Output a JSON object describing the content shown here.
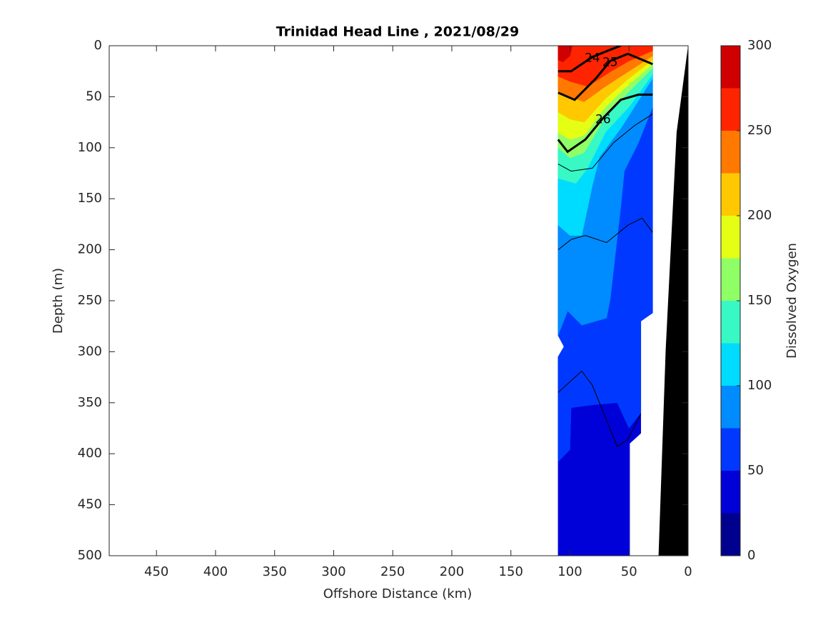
{
  "chart_data": {
    "type": "contourf",
    "title": "Trinidad Head Line , 2021/08/29",
    "xlabel": "Offshore Distance (km)",
    "ylabel": "Depth (m)",
    "colorbar_label": "Dissolved Oxygen",
    "xlim": [
      490,
      0
    ],
    "ylim": [
      0,
      500
    ],
    "xticks": [
      450,
      400,
      350,
      300,
      250,
      200,
      150,
      100,
      50,
      0
    ],
    "yticks": [
      0,
      50,
      100,
      150,
      200,
      250,
      300,
      350,
      400,
      450,
      500
    ],
    "levels": [
      0,
      25,
      50,
      75,
      100,
      125,
      150,
      175,
      200,
      225,
      250,
      275,
      300
    ],
    "colors": [
      "#00008f",
      "#0000d8",
      "#0038ff",
      "#008cff",
      "#00dcff",
      "#38f8c4",
      "#90ff66",
      "#e4ff14",
      "#ffc800",
      "#ff7800",
      "#ff2400",
      "#d00000"
    ],
    "cticks": [
      0,
      50,
      100,
      150,
      200,
      250,
      300
    ],
    "regions": [
      {
        "level": 25,
        "x": [
          110,
          30,
          30,
          40,
          40,
          49.5,
          49.5,
          110,
          110,
          105,
          110
        ],
        "depth": [
          0,
          0,
          262,
          270,
          380,
          390,
          500,
          500,
          305,
          295,
          284
        ]
      },
      {
        "level": 50,
        "x": [
          110,
          30,
          30,
          40,
          40,
          50,
          60,
          80,
          99,
          100,
          110,
          110,
          105,
          110
        ],
        "depth": [
          0,
          0,
          262,
          270,
          360,
          375,
          350,
          352,
          355,
          396,
          408,
          305,
          295,
          284
        ]
      },
      {
        "level": 75,
        "x": [
          110,
          30,
          30,
          42,
          54,
          57,
          66,
          69,
          90,
          102,
          110
        ],
        "depth": [
          0,
          0,
          60,
          95,
          123,
          158,
          249,
          267,
          274,
          260,
          284
        ]
      },
      {
        "level": 100,
        "x": [
          110,
          30,
          30,
          57,
          75,
          81,
          90,
          100,
          110
        ],
        "depth": [
          0,
          0,
          32,
          81,
          109,
          137,
          186,
          186,
          176
        ]
      },
      {
        "level": 125,
        "x": [
          110,
          30,
          30,
          50,
          70,
          85,
          95,
          110
        ],
        "depth": [
          0,
          0,
          28,
          60,
          85,
          120,
          135,
          130
        ]
      },
      {
        "level": 150,
        "x": [
          110,
          30,
          30,
          50,
          70,
          88,
          100,
          110
        ],
        "depth": [
          0,
          0,
          22,
          45,
          70,
          105,
          110,
          100
        ]
      },
      {
        "level": 175,
        "x": [
          110,
          30,
          30,
          50,
          70,
          88,
          100,
          110
        ],
        "depth": [
          0,
          0,
          18,
          38,
          60,
          88,
          92,
          85
        ]
      },
      {
        "level": 200,
        "x": [
          110,
          30,
          30,
          50,
          70,
          88,
          100,
          110
        ],
        "depth": [
          0,
          0,
          14,
          32,
          52,
          75,
          72,
          65
        ]
      },
      {
        "level": 225,
        "x": [
          110,
          30,
          30,
          50,
          70,
          88,
          100,
          110
        ],
        "depth": [
          0,
          0,
          10,
          25,
          40,
          55,
          50,
          45
        ]
      },
      {
        "level": 250,
        "x": [
          110,
          30,
          30,
          50,
          65,
          85,
          100,
          110
        ],
        "depth": [
          0,
          0,
          5,
          15,
          25,
          40,
          35,
          30
        ]
      },
      {
        "level": 275,
        "x": [
          110,
          98,
          100,
          106,
          110
        ],
        "depth": [
          0,
          0,
          10,
          16,
          14
        ]
      }
    ],
    "lines": [
      {
        "level": 24,
        "x": [
          110,
          99,
          81,
          66,
          57
        ],
        "depth": [
          25,
          25,
          11,
          4,
          0
        ]
      },
      {
        "level": 25,
        "x": [
          110,
          96,
          78,
          66,
          51,
          30
        ],
        "depth": [
          46,
          53,
          32,
          15,
          8,
          18
        ]
      },
      {
        "level": 26,
        "x": [
          110,
          102,
          87,
          72,
          57,
          42,
          30
        ],
        "depth": [
          92,
          104,
          92,
          71,
          53,
          48,
          48
        ]
      },
      {
        "x": [
          110,
          99,
          81,
          63,
          45,
          30
        ],
        "depth": [
          116,
          123,
          120,
          95,
          78,
          67
        ]
      },
      {
        "x": [
          110,
          99,
          87,
          69,
          51,
          39,
          30
        ],
        "depth": [
          200,
          190,
          186,
          193,
          176,
          169,
          183
        ]
      },
      {
        "x": [
          110,
          90,
          81,
          60,
          51,
          40
        ],
        "depth": [
          340,
          319,
          333,
          393,
          386,
          361
        ]
      }
    ],
    "bathymetry": {
      "x": [
        0,
        9.7,
        19,
        25,
        0
      ],
      "depth": [
        0,
        85,
        298,
        500,
        500
      ]
    }
  }
}
